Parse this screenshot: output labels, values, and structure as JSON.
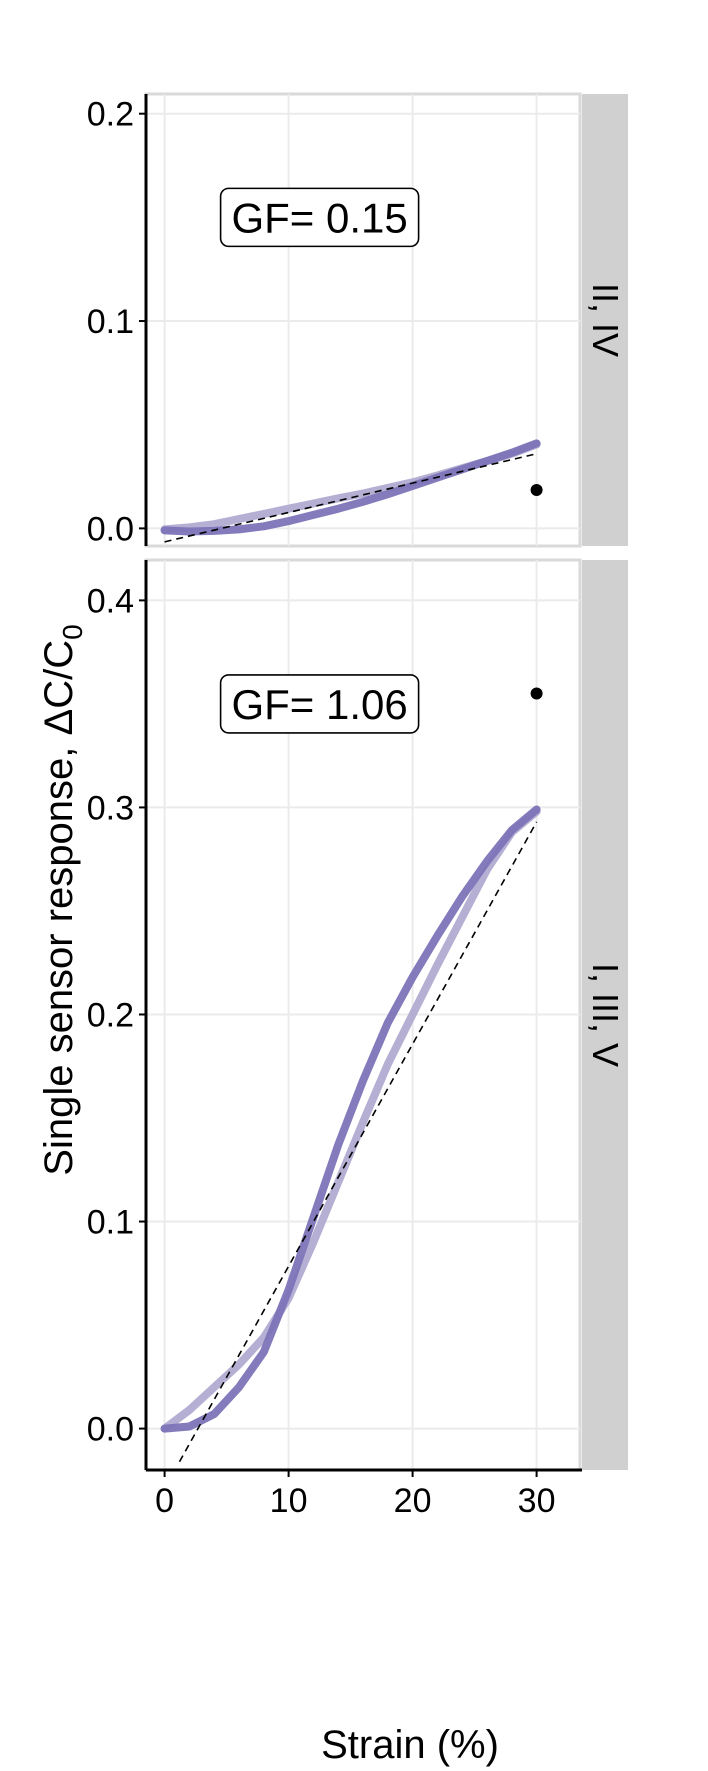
{
  "chart_data": {
    "type": "line",
    "title": "",
    "xlabel": "Strain (%)",
    "ylabel": {
      "main": "Single sensor response, ",
      "delta": "Δ",
      "c": "C",
      "slash": "/",
      "c0": "C",
      "sub": "0"
    },
    "xlim": [
      -1.5,
      33.5
    ],
    "xticks": [
      0,
      10,
      20,
      30
    ],
    "x_tick_labels": [
      "0",
      "10",
      "20",
      "30"
    ],
    "grid": true,
    "panels": [
      {
        "strip_label": "II, IV",
        "gf_label": "GF= 0.15",
        "gf_pos": [
          12.5,
          0.15
        ],
        "ylim": [
          -0.0085,
          0.2095
        ],
        "yticks": [
          0.0,
          0.1,
          0.2
        ],
        "y_tick_labels": [
          "0.0",
          "0.1",
          "0.2"
        ],
        "series": [
          {
            "color": "#b1abd1",
            "x": [
              0,
              2,
              4,
              6,
              8,
              10,
              12,
              14,
              16,
              18,
              20,
              22,
              24,
              26,
              28,
              30
            ],
            "y": [
              -0.0005,
              0.0005,
              0.002,
              0.0045,
              0.007,
              0.0095,
              0.012,
              0.0145,
              0.0168,
              0.0195,
              0.0222,
              0.0255,
              0.029,
              0.0325,
              0.036,
              0.0405
            ]
          },
          {
            "color": "#7c74b7",
            "x": [
              0,
              2,
              4,
              6,
              8,
              10,
              12,
              14,
              16,
              18,
              20,
              22,
              24,
              26,
              28,
              30
            ],
            "y": [
              -0.001,
              -0.0015,
              -0.0012,
              -0.0005,
              0.001,
              0.0035,
              0.0065,
              0.0095,
              0.0128,
              0.0165,
              0.0205,
              0.0245,
              0.0285,
              0.0325,
              0.0365,
              0.041
            ]
          }
        ],
        "fit": {
          "x": [
            0,
            30
          ],
          "y": [
            -0.0065,
            0.036
          ]
        },
        "points": [
          {
            "x": 30,
            "y": 0.0185
          }
        ]
      },
      {
        "strip_label": "I, III, V",
        "gf_label": "GF= 1.06",
        "gf_pos": [
          12.5,
          0.35
        ],
        "ylim": [
          -0.02,
          0.4195
        ],
        "yticks": [
          0.0,
          0.1,
          0.2,
          0.3,
          0.4
        ],
        "y_tick_labels": [
          "0.0",
          "0.1",
          "0.2",
          "0.3",
          "0.4"
        ],
        "series": [
          {
            "color": "#b1abd1",
            "x": [
              0,
              2,
              4,
              6,
              8,
              10,
              12,
              14,
              16,
              18,
              20,
              22,
              24,
              26,
              28,
              30
            ],
            "y": [
              0.0,
              0.009,
              0.02,
              0.031,
              0.044,
              0.063,
              0.09,
              0.119,
              0.148,
              0.176,
              0.2,
              0.224,
              0.247,
              0.27,
              0.288,
              0.298
            ]
          },
          {
            "color": "#7c74b7",
            "x": [
              0,
              2,
              4,
              6,
              8,
              10,
              12,
              14,
              16,
              18,
              20,
              22,
              24,
              26,
              28,
              30
            ],
            "y": [
              0.0,
              0.001,
              0.007,
              0.02,
              0.037,
              0.067,
              0.102,
              0.137,
              0.168,
              0.196,
              0.218,
              0.238,
              0.257,
              0.274,
              0.289,
              0.299
            ]
          }
        ],
        "fit": {
          "x": [
            1.2,
            30
          ],
          "y": [
            -0.016,
            0.293
          ]
        },
        "points": [
          {
            "x": 30,
            "y": 0.355
          }
        ]
      }
    ],
    "colors": {
      "series_light": "#b1abd1",
      "series_dark": "#7c74b7",
      "grid": "#ebebeb",
      "strip": "#d0d0d0",
      "point": "#000000",
      "fit_line": "#000000"
    }
  }
}
